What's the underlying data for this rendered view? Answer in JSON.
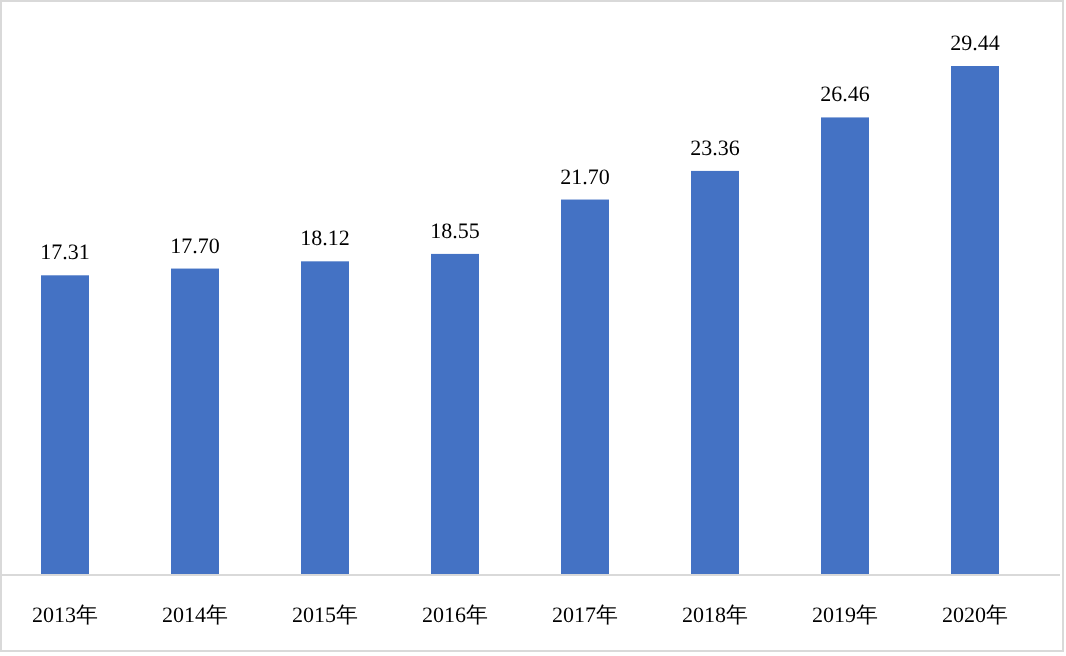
{
  "chart_data": {
    "type": "bar",
    "categories": [
      "2013年",
      "2014年",
      "2015年",
      "2016年",
      "2017年",
      "2018年",
      "2019年",
      "2020年"
    ],
    "values": [
      17.31,
      17.7,
      18.12,
      18.55,
      21.7,
      23.36,
      26.46,
      29.44
    ],
    "color": "#4472c4",
    "value_labels": [
      "17.31",
      "17.70",
      "18.12",
      "18.55",
      "21.70",
      "23.36",
      "26.46",
      "29.44"
    ]
  }
}
